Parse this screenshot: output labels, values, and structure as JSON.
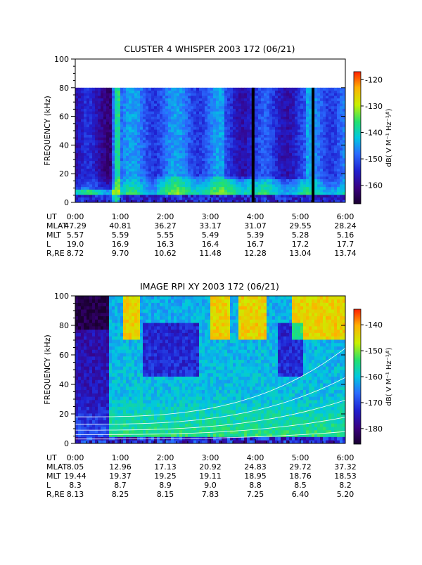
{
  "colors": {
    "cmap": [
      "#1a0030",
      "#3a0080",
      "#2020d0",
      "#2a6cff",
      "#00c8e0",
      "#22e070",
      "#c8f000",
      "#ffb000",
      "#ff2000"
    ]
  },
  "chart_data": [
    {
      "type": "heatmap",
      "title": "CLUSTER 4 WHISPER 2003 172 (06/21)",
      "ylabel": "FREQUENCY (kHz)",
      "ylim": [
        0,
        100
      ],
      "y_ticks": [
        "0",
        "20",
        "40",
        "60",
        "80",
        "100"
      ],
      "xlim": [
        "0:00",
        "6:00"
      ],
      "data_frequency_max_khz": 80,
      "colorbar": {
        "label": "dB( V M⁻¹ Hz⁻¹⁄²)",
        "range": [
          -167,
          -117
        ],
        "ticks": [
          "-120",
          "-130",
          "-140",
          "-150",
          "-160"
        ]
      },
      "data_gaps_ut": [
        "3:57",
        "5:17"
      ],
      "ephemeris": {
        "row_labels": [
          "UT",
          "MLAT",
          "MLT",
          "L",
          "R,RE"
        ],
        "columns": [
          [
            "0:00",
            "47.29",
            "5.57",
            "19.0",
            "8.72"
          ],
          [
            "1:00",
            "40.81",
            "5.59",
            "16.9",
            "9.70"
          ],
          [
            "2:00",
            "36.27",
            "5.55",
            "16.3",
            "10.62"
          ],
          [
            "3:00",
            "33.17",
            "5.49",
            "16.4",
            "11.48"
          ],
          [
            "4:00",
            "31.07",
            "5.39",
            "16.7",
            "12.28"
          ],
          [
            "5:00",
            "29.55",
            "5.28",
            "17.2",
            "13.04"
          ],
          [
            "6:00",
            "28.24",
            "5.16",
            "17.7",
            "13.74"
          ]
        ]
      }
    },
    {
      "type": "heatmap",
      "title": "IMAGE RPI XY 2003 172 (06/21)",
      "ylabel": "FREQUENCY (kHz)",
      "ylim": [
        0,
        100
      ],
      "y_ticks": [
        "0",
        "20",
        "40",
        "60",
        "80",
        "100"
      ],
      "xlim": [
        "0:00",
        "6:00"
      ],
      "colorbar": {
        "label": "dB( V M⁻¹ Hz⁻¹⁄²)",
        "range": [
          -186,
          -134
        ],
        "ticks": [
          "-140",
          "-150",
          "-160",
          "-170",
          "-180"
        ]
      },
      "ephemeris": {
        "row_labels": [
          "UT",
          "MLAT",
          "MLT",
          "L",
          "R,RE"
        ],
        "columns": [
          [
            "0:00",
            "8.05",
            "19.44",
            "8.3",
            "8.13"
          ],
          [
            "1:00",
            "12.96",
            "19.37",
            "8.7",
            "8.25"
          ],
          [
            "2:00",
            "17.13",
            "19.25",
            "8.9",
            "8.15"
          ],
          [
            "3:00",
            "20.92",
            "19.11",
            "9.0",
            "7.83"
          ],
          [
            "4:00",
            "24.83",
            "18.95",
            "8.8",
            "7.25"
          ],
          [
            "5:00",
            "29.72",
            "18.76",
            "8.5",
            "6.40"
          ],
          [
            "6:00",
            "37.32",
            "18.53",
            "8.2",
            "5.20"
          ]
        ]
      }
    }
  ]
}
